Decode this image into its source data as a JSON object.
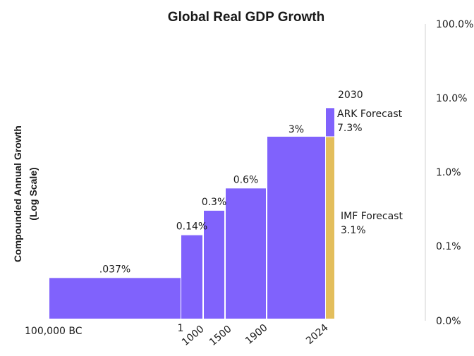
{
  "chart_data": {
    "type": "bar",
    "title": "Global Real GDP Growth",
    "ylabel_lines": [
      "Compounded Annual Growth",
      "(Log Scale)"
    ],
    "y_scale": "log",
    "y_ticks": [
      "100.0%",
      "10.0%",
      "1.0%",
      "0.1%",
      "0.0%"
    ],
    "x_ticks": [
      "100,000 BC",
      "1",
      "1000",
      "1500",
      "1900",
      "2024"
    ],
    "bars": [
      {
        "start": "100,000 BC",
        "end": "1",
        "value": 0.037,
        "label": ".037%"
      },
      {
        "start": "1",
        "end": "1000",
        "value": 0.14,
        "label": "0.14%"
      },
      {
        "start": "1000",
        "end": "1500",
        "value": 0.3,
        "label": "0.3%"
      },
      {
        "start": "1500",
        "end": "1900",
        "value": 0.6,
        "label": "0.6%"
      },
      {
        "start": "1900",
        "end": "2024",
        "value": 3,
        "label": "3%"
      }
    ],
    "forecasts": [
      {
        "name": "IMF Forecast",
        "value": 3.1,
        "label": "3.1%",
        "color": "#E3BE5C"
      },
      {
        "name": "ARK Forecast",
        "value": 7.3,
        "label": "7.3%",
        "period_label": "2030",
        "color": "#8062FC"
      }
    ],
    "colors": {
      "bar": "#8062FC",
      "imf": "#E3BE5C",
      "axis": "#d0d0d0"
    }
  }
}
